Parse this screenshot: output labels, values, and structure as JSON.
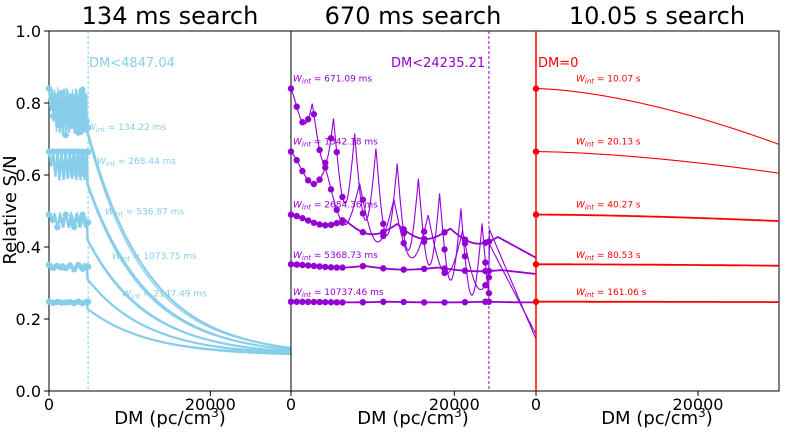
{
  "figure": {
    "ylabel": "Relative S/N",
    "xlabel": "DM (pc/cm",
    "xlabel_sup": "3",
    "xlabel_end": ")"
  },
  "chart_data": [
    {
      "type": "line",
      "title": "134 ms search",
      "color": "#87CEEB",
      "dm_cut_label": "DM<4847.04",
      "dm_cut": 4847.04,
      "xlim": [
        0,
        30000
      ],
      "ylim": [
        0.0,
        1.0
      ],
      "xticks": [
        0,
        20000
      ],
      "yticks": [
        0.0,
        0.2,
        0.4,
        0.6,
        0.8,
        1.0
      ],
      "ytick_labels": [
        "0.0",
        "0.2",
        "0.4",
        "0.6",
        "0.8",
        "1.0"
      ],
      "series": [
        {
          "name": "W_int = 134.22 ms",
          "w_label": "134.22 ms",
          "y0": 0.84,
          "shape": "fast"
        },
        {
          "name": "W_int = 268.44 ms",
          "w_label": "268.44 ms",
          "y0": 0.665,
          "shape": "fast"
        },
        {
          "name": "W_int = 536.87 ms",
          "w_label": "536.87 ms",
          "y0": 0.49,
          "shape": "fast"
        },
        {
          "name": "W_int = 1073.75 ms",
          "w_label": "1073.75 ms",
          "y0": 0.35,
          "shape": "fast"
        },
        {
          "name": "W_int = 2147.49 ms",
          "w_label": "2147.49 ms",
          "y0": 0.248,
          "shape": "fast"
        }
      ]
    },
    {
      "type": "line",
      "title": "670 ms search",
      "color": "#9400D3",
      "dm_cut_label": "DM<24235.21",
      "dm_cut": 24235.21,
      "xlim": [
        0,
        30000
      ],
      "ylim": [
        0.0,
        1.0
      ],
      "xticks": [
        0,
        20000
      ],
      "series": [
        {
          "name": "W_int = 671.09 ms",
          "w_label": "671.09 ms",
          "y0": 0.84,
          "shape": "mid"
        },
        {
          "name": "W_int = 1342.18 ms",
          "w_label": "1342.18 ms",
          "y0": 0.665,
          "shape": "mid"
        },
        {
          "name": "W_int = 2684.36 ms",
          "w_label": "2684.36 ms",
          "y0": 0.49,
          "shape": "mid"
        },
        {
          "name": "W_int = 5368.73 ms",
          "w_label": "5368.73 ms",
          "y0": 0.352,
          "shape": "mid"
        },
        {
          "name": "W_int = 10737.46 ms",
          "w_label": "10737.46 ms",
          "y0": 0.248,
          "shape": "mid"
        }
      ]
    },
    {
      "type": "line",
      "title": "10.05 s search",
      "color": "#FF0000",
      "dm_cut_label": "DM=0",
      "dm_cut": 0,
      "xlim": [
        0,
        30000
      ],
      "ylim": [
        0.0,
        1.0
      ],
      "xticks": [
        0,
        20000
      ],
      "series": [
        {
          "name": "W_int = 10.07 s",
          "w_label": "10.07 s",
          "y0": 0.84,
          "y_end": 0.685,
          "shape": "slow"
        },
        {
          "name": "W_int = 20.13 s",
          "w_label": "20.13 s",
          "y0": 0.665,
          "y_end": 0.605,
          "shape": "slow"
        },
        {
          "name": "W_int = 40.27 s",
          "w_label": "40.27 s",
          "y0": 0.49,
          "y_end": 0.472,
          "shape": "slow"
        },
        {
          "name": "W_int = 80.53 s",
          "w_label": "80.53 s",
          "y0": 0.352,
          "y_end": 0.348,
          "shape": "slow"
        },
        {
          "name": "W_int = 161.06 s",
          "w_label": "161.06 s",
          "y0": 0.248,
          "y_end": 0.247,
          "shape": "slow"
        }
      ]
    }
  ]
}
